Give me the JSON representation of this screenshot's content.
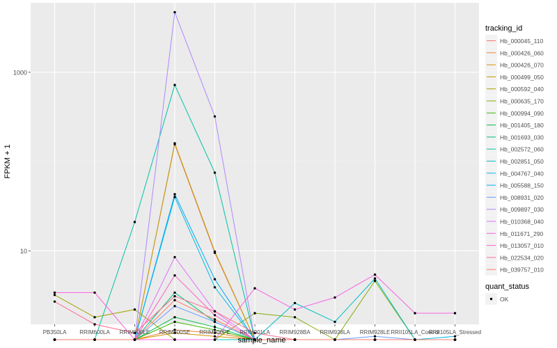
{
  "chart_data": {
    "type": "line",
    "xlabel": "sample_name",
    "ylabel": "FPKM + 1",
    "y_scale": "log10",
    "ylim": [
      1.5,
      6000
    ],
    "y_ticks": [
      10,
      1000
    ],
    "y_tick_labels": [
      "10",
      "1000"
    ],
    "categories": [
      "PB350LA",
      "RRIM600LA",
      "RRIM600LE",
      "RRIM600SE",
      "RRIM600PE",
      "RRIM901LA",
      "RRIM928BA",
      "RRIM928LA",
      "RRIM928LE",
      "RRII105LA_Control",
      "RRII105LA_Stressed"
    ],
    "category_labels": [
      "PB350LA",
      "RRIM600LA",
      "RRIM600LE",
      "RRIM600SE",
      "RRIM600PE",
      "RRIM901LA",
      "RRIM928BA",
      "RRIM928LA",
      "RRIM928LE",
      "RRII105LA_Control",
      "RRII105LA_Stressed"
    ],
    "grid": true,
    "panel_background": "#ebebeb",
    "legend": {
      "position": "right",
      "color_title": "tracking_id",
      "shape_title": "quant_status",
      "shape_label": "OK"
    },
    "series": [
      {
        "name": "Hb_000045_110",
        "color": "#F8766D",
        "values": [
          1.01,
          1.01,
          1.01,
          156,
          9.5,
          1.01,
          1.01,
          1.01,
          1.01,
          1.01,
          1.01
        ]
      },
      {
        "name": "Hb_000426_060",
        "color": "#EA8331",
        "values": [
          1.01,
          1.01,
          1.01,
          1.3,
          1.2,
          1.01,
          1.01,
          1.01,
          1.01,
          1.01,
          1.01
        ]
      },
      {
        "name": "Hb_000426_070",
        "color": "#D89000",
        "values": [
          1.01,
          1.01,
          1.01,
          1.2,
          1.1,
          1.01,
          1.01,
          1.01,
          1.01,
          1.01,
          1.01
        ]
      },
      {
        "name": "Hb_000499_050",
        "color": "#C09B00",
        "values": [
          1.01,
          1.01,
          1.01,
          160,
          9.8,
          1.01,
          1.01,
          1.01,
          1.01,
          1.01,
          1.01
        ]
      },
      {
        "name": "Hb_000592_040",
        "color": "#A3A500",
        "values": [
          3.2,
          1.8,
          2.2,
          1.01,
          1.01,
          1.01,
          1.01,
          1.01,
          1.01,
          1.01,
          1.01
        ]
      },
      {
        "name": "Hb_000635_170",
        "color": "#7CAE00",
        "values": [
          1.01,
          1.01,
          1.01,
          1.01,
          1.01,
          2.0,
          1.8,
          1.01,
          4.6,
          1.01,
          1.01
        ]
      },
      {
        "name": "Hb_000994_090",
        "color": "#39B600",
        "values": [
          1.01,
          1.01,
          1.01,
          1.6,
          1.3,
          1.01,
          1.01,
          1.01,
          1.01,
          1.01,
          1.01
        ]
      },
      {
        "name": "Hb_001405_180",
        "color": "#00BB4E",
        "values": [
          1.01,
          1.01,
          1.01,
          1.8,
          1.4,
          1.01,
          1.01,
          1.01,
          1.01,
          1.01,
          1.01
        ]
      },
      {
        "name": "Hb_001693_030",
        "color": "#00BF7D",
        "values": [
          1.01,
          1.01,
          1.01,
          3.4,
          1.6,
          1.01,
          1.01,
          1.01,
          1.01,
          1.01,
          1.01
        ]
      },
      {
        "name": "Hb_002572_060",
        "color": "#00C1A3",
        "values": [
          1.01,
          1.01,
          21.0,
          720,
          75,
          1.01,
          1.01,
          1.01,
          1.01,
          1.01,
          1.01
        ]
      },
      {
        "name": "Hb_002851_050",
        "color": "#00BFC4",
        "values": [
          1.01,
          1.01,
          1.01,
          1.01,
          1.01,
          1.01,
          2.6,
          1.6,
          4.9,
          1.01,
          1.01
        ]
      },
      {
        "name": "Hb_004767_040",
        "color": "#00B9E3",
        "values": [
          1.01,
          1.01,
          1.01,
          40,
          3.9,
          1.01,
          1.01,
          1.01,
          1.01,
          1.01,
          1.1
        ]
      },
      {
        "name": "Hb_005588_150",
        "color": "#00ADFA",
        "values": [
          1.01,
          1.01,
          1.01,
          43,
          4.8,
          1.01,
          1.01,
          1.01,
          1.01,
          1.01,
          1.01
        ]
      },
      {
        "name": "Hb_008931_020",
        "color": "#619CFF",
        "values": [
          1.01,
          1.01,
          1.01,
          2.4,
          1.6,
          1.01,
          1.01,
          1.01,
          1.1,
          1.01,
          1.01
        ]
      },
      {
        "name": "Hb_009897_030",
        "color": "#AE87FF",
        "values": [
          1.01,
          1.01,
          1.01,
          4700,
          320,
          1.01,
          1.01,
          1.01,
          1.01,
          1.01,
          1.01
        ]
      },
      {
        "name": "Hb_010368_040",
        "color": "#DB72FB",
        "values": [
          1.01,
          1.01,
          1.01,
          8.5,
          2.1,
          1.01,
          1.01,
          1.01,
          1.01,
          1.01,
          1.01
        ]
      },
      {
        "name": "Hb_011671_290",
        "color": "#F564E3",
        "values": [
          3.4,
          3.4,
          1.01,
          1.01,
          1.01,
          3.8,
          2.2,
          3.0,
          5.4,
          2.0,
          2.0
        ]
      },
      {
        "name": "Hb_013057_010",
        "color": "#FF61C3",
        "values": [
          1.01,
          1.01,
          1.01,
          5.3,
          1.9,
          1.01,
          1.01,
          1.01,
          1.01,
          1.01,
          1.01
        ]
      },
      {
        "name": "Hb_022534_020",
        "color": "#FF6C91",
        "values": [
          2.7,
          1.5,
          1.2,
          3.1,
          2.1,
          1.2,
          1.01,
          1.01,
          1.01,
          1.01,
          1.01
        ]
      },
      {
        "name": "Hb_039757_010",
        "color": "#FF7B6A",
        "values": [
          1.01,
          1.01,
          1.01,
          2.8,
          1.7,
          1.01,
          1.01,
          1.01,
          1.01,
          1.01,
          1.01
        ]
      }
    ]
  }
}
